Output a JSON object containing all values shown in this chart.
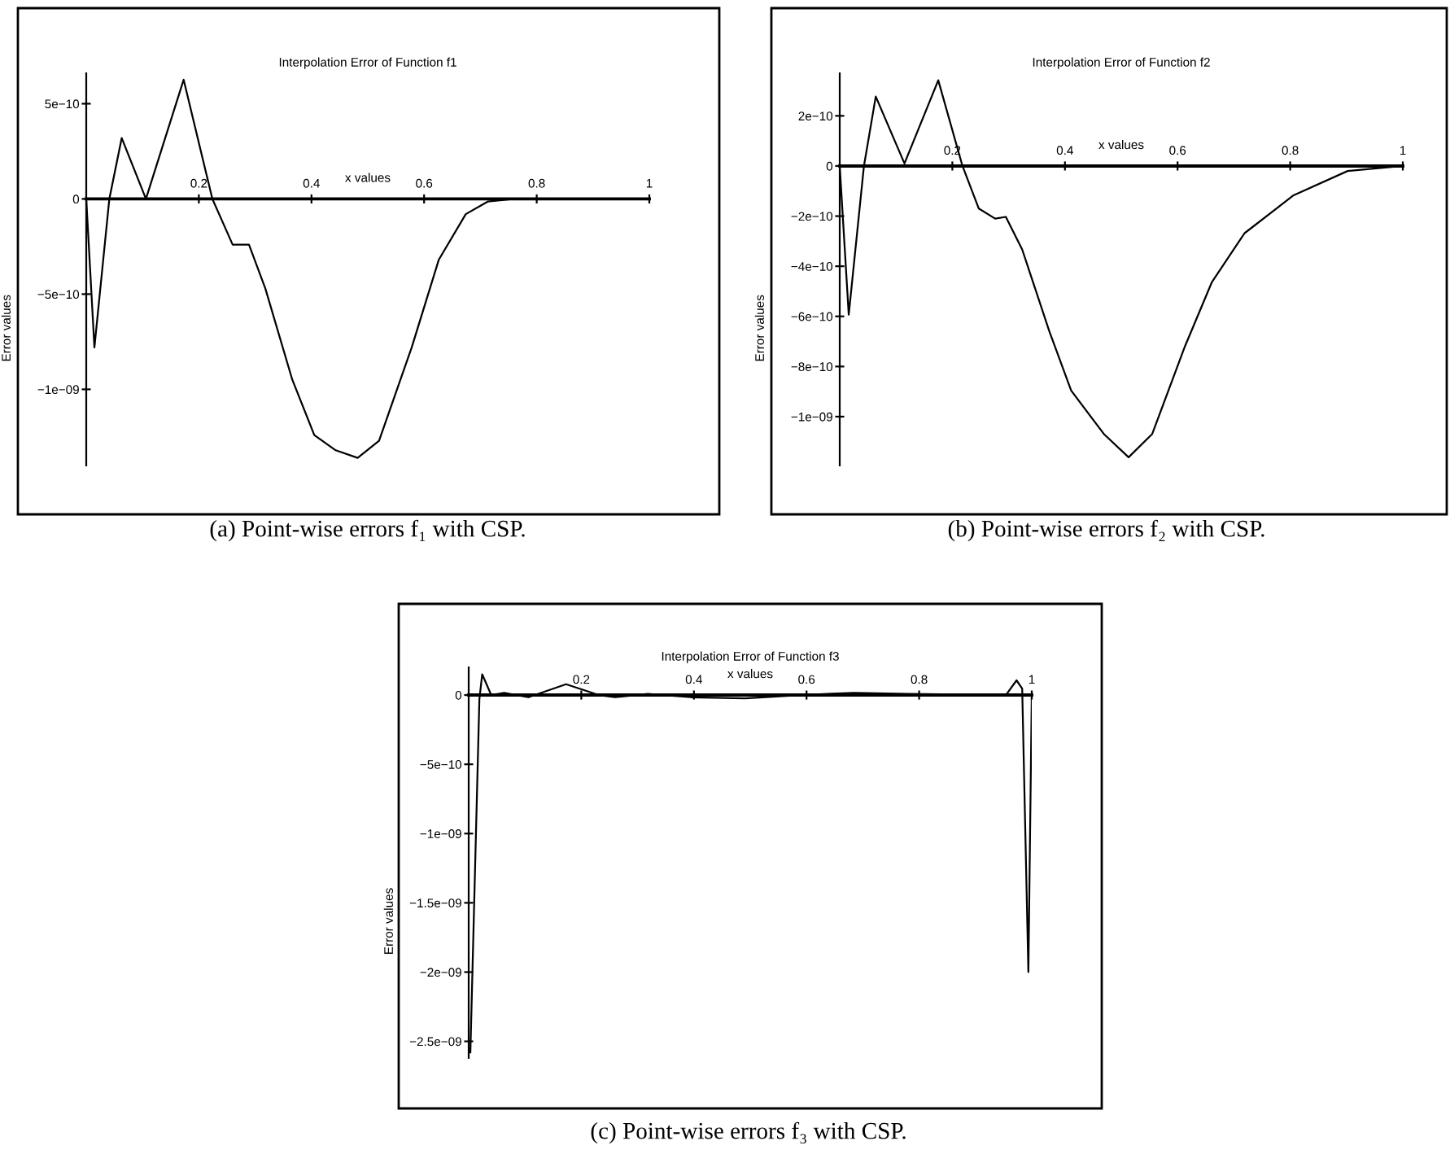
{
  "chart_data": [
    {
      "type": "line",
      "title": "Interpolation Error of Function f1",
      "xlabel": "x values",
      "ylabel": "Error values",
      "annotations": [
        "(a) Point-wise errors f₁ with CSP."
      ],
      "xlim": [
        0,
        1
      ],
      "ylim": [
        -1.4e-09,
        6.6e-10
      ],
      "xticks": [
        0.2,
        0.4,
        0.6,
        0.8,
        1
      ],
      "yticks": [
        {
          "value": 5e-10,
          "label": "5e−10"
        },
        0,
        {
          "value": -5e-10,
          "label": "−5e−10"
        },
        {
          "value": -1e-09,
          "label": "−1e−09"
        }
      ],
      "series": [
        {
          "color": "#000000",
          "x": [
            0,
            0.0145,
            0.041,
            0.063,
            0.106,
            0.173,
            0.224,
            0.26,
            0.289,
            0.318,
            0.366,
            0.405,
            0.443,
            0.482,
            0.52,
            0.578,
            0.626,
            0.674,
            0.713,
            0.76,
            1
          ],
          "values": [
            0,
            -7.8e-10,
            0,
            3.2e-10,
            0,
            6.26e-10,
            0,
            -2.4e-10,
            -2.4e-10,
            -4.7e-10,
            -9.5e-10,
            -1.24e-09,
            -1.32e-09,
            -1.36e-09,
            -1.27e-09,
            -7.8e-10,
            -3.2e-10,
            -8e-11,
            -1.4e-11,
            0,
            0
          ]
        }
      ]
    },
    {
      "type": "line",
      "title": "Interpolation Error of Function f2",
      "xlabel": "x values",
      "ylabel": "Error values",
      "annotations": [
        "(b) Point-wise errors f₂ with CSP."
      ],
      "xlim": [
        0,
        1
      ],
      "ylim": [
        -1.195e-09,
        3.7e-10
      ],
      "xticks": [
        0.2,
        0.4,
        0.6,
        0.8,
        1
      ],
      "yticks": [
        {
          "value": 2e-10,
          "label": "2e−10"
        },
        0,
        {
          "value": -2e-10,
          "label": "−2e−10"
        },
        {
          "value": -4e-10,
          "label": "−4e−10"
        },
        {
          "value": -6e-10,
          "label": "−6e−10"
        },
        {
          "value": -8e-10,
          "label": "−8e−10"
        },
        {
          "value": -1e-09,
          "label": "−1e−09"
        }
      ],
      "series": [
        {
          "color": "#000000",
          "x": [
            0,
            0.016,
            0.043,
            0.064,
            0.115,
            0.175,
            0.218,
            0.247,
            0.276,
            0.295,
            0.324,
            0.372,
            0.411,
            0.469,
            0.513,
            0.555,
            0.613,
            0.661,
            0.719,
            0.806,
            0.902,
            1
          ],
          "values": [
            0,
            -5.93e-10,
            0,
            2.77e-10,
            1e-11,
            3.42e-10,
            0,
            -1.7e-10,
            -2.1e-10,
            -2.03e-10,
            -3.33e-10,
            -6.58e-10,
            -8.96e-10,
            -1.069e-09,
            -1.162e-09,
            -1.069e-09,
            -7.2e-10,
            -4.63e-10,
            -2.68e-10,
            -1.17e-10,
            -2e-11,
            0
          ]
        }
      ]
    },
    {
      "type": "line",
      "title": "Interpolation Error of Function f3",
      "xlabel": "x values",
      "ylabel": "Error values",
      "annotations": [
        "(c) Point-wise errors f₃ with CSP."
      ],
      "xlim": [
        0,
        1
      ],
      "ylim": [
        -2.62e-09,
        2e-10
      ],
      "xticks": [
        0.2,
        0.4,
        0.6,
        0.8,
        1
      ],
      "yticks": [
        0,
        {
          "value": -5e-10,
          "label": "−5e−10"
        },
        {
          "value": -1e-09,
          "label": "−1e−09"
        },
        {
          "value": -1.5e-09,
          "label": "−1.5e−09"
        },
        {
          "value": -2e-09,
          "label": "−2e−09"
        },
        {
          "value": -2.5e-09,
          "label": "−2.5e−09"
        }
      ],
      "series": [
        {
          "color": "#000000",
          "x": [
            0.003,
            0.019,
            0.024,
            0.04,
            0.063,
            0.106,
            0.173,
            0.231,
            0.26,
            0.318,
            0.395,
            0.491,
            0.588,
            0.684,
            0.78,
            0.954,
            0.973,
            0.983,
            0.994,
            1
          ],
          "values": [
            -2.58e-09,
            -3e-11,
            1.5e-10,
            0,
            1.6e-11,
            -1.6e-11,
            7.8e-11,
            0,
            -1.6e-11,
            8e-12,
            -1.6e-11,
            -2.4e-11,
            0,
            1.6e-11,
            8e-12,
            0,
            1.06e-10,
            4.7e-11,
            -2e-09,
            0
          ]
        }
      ]
    }
  ]
}
